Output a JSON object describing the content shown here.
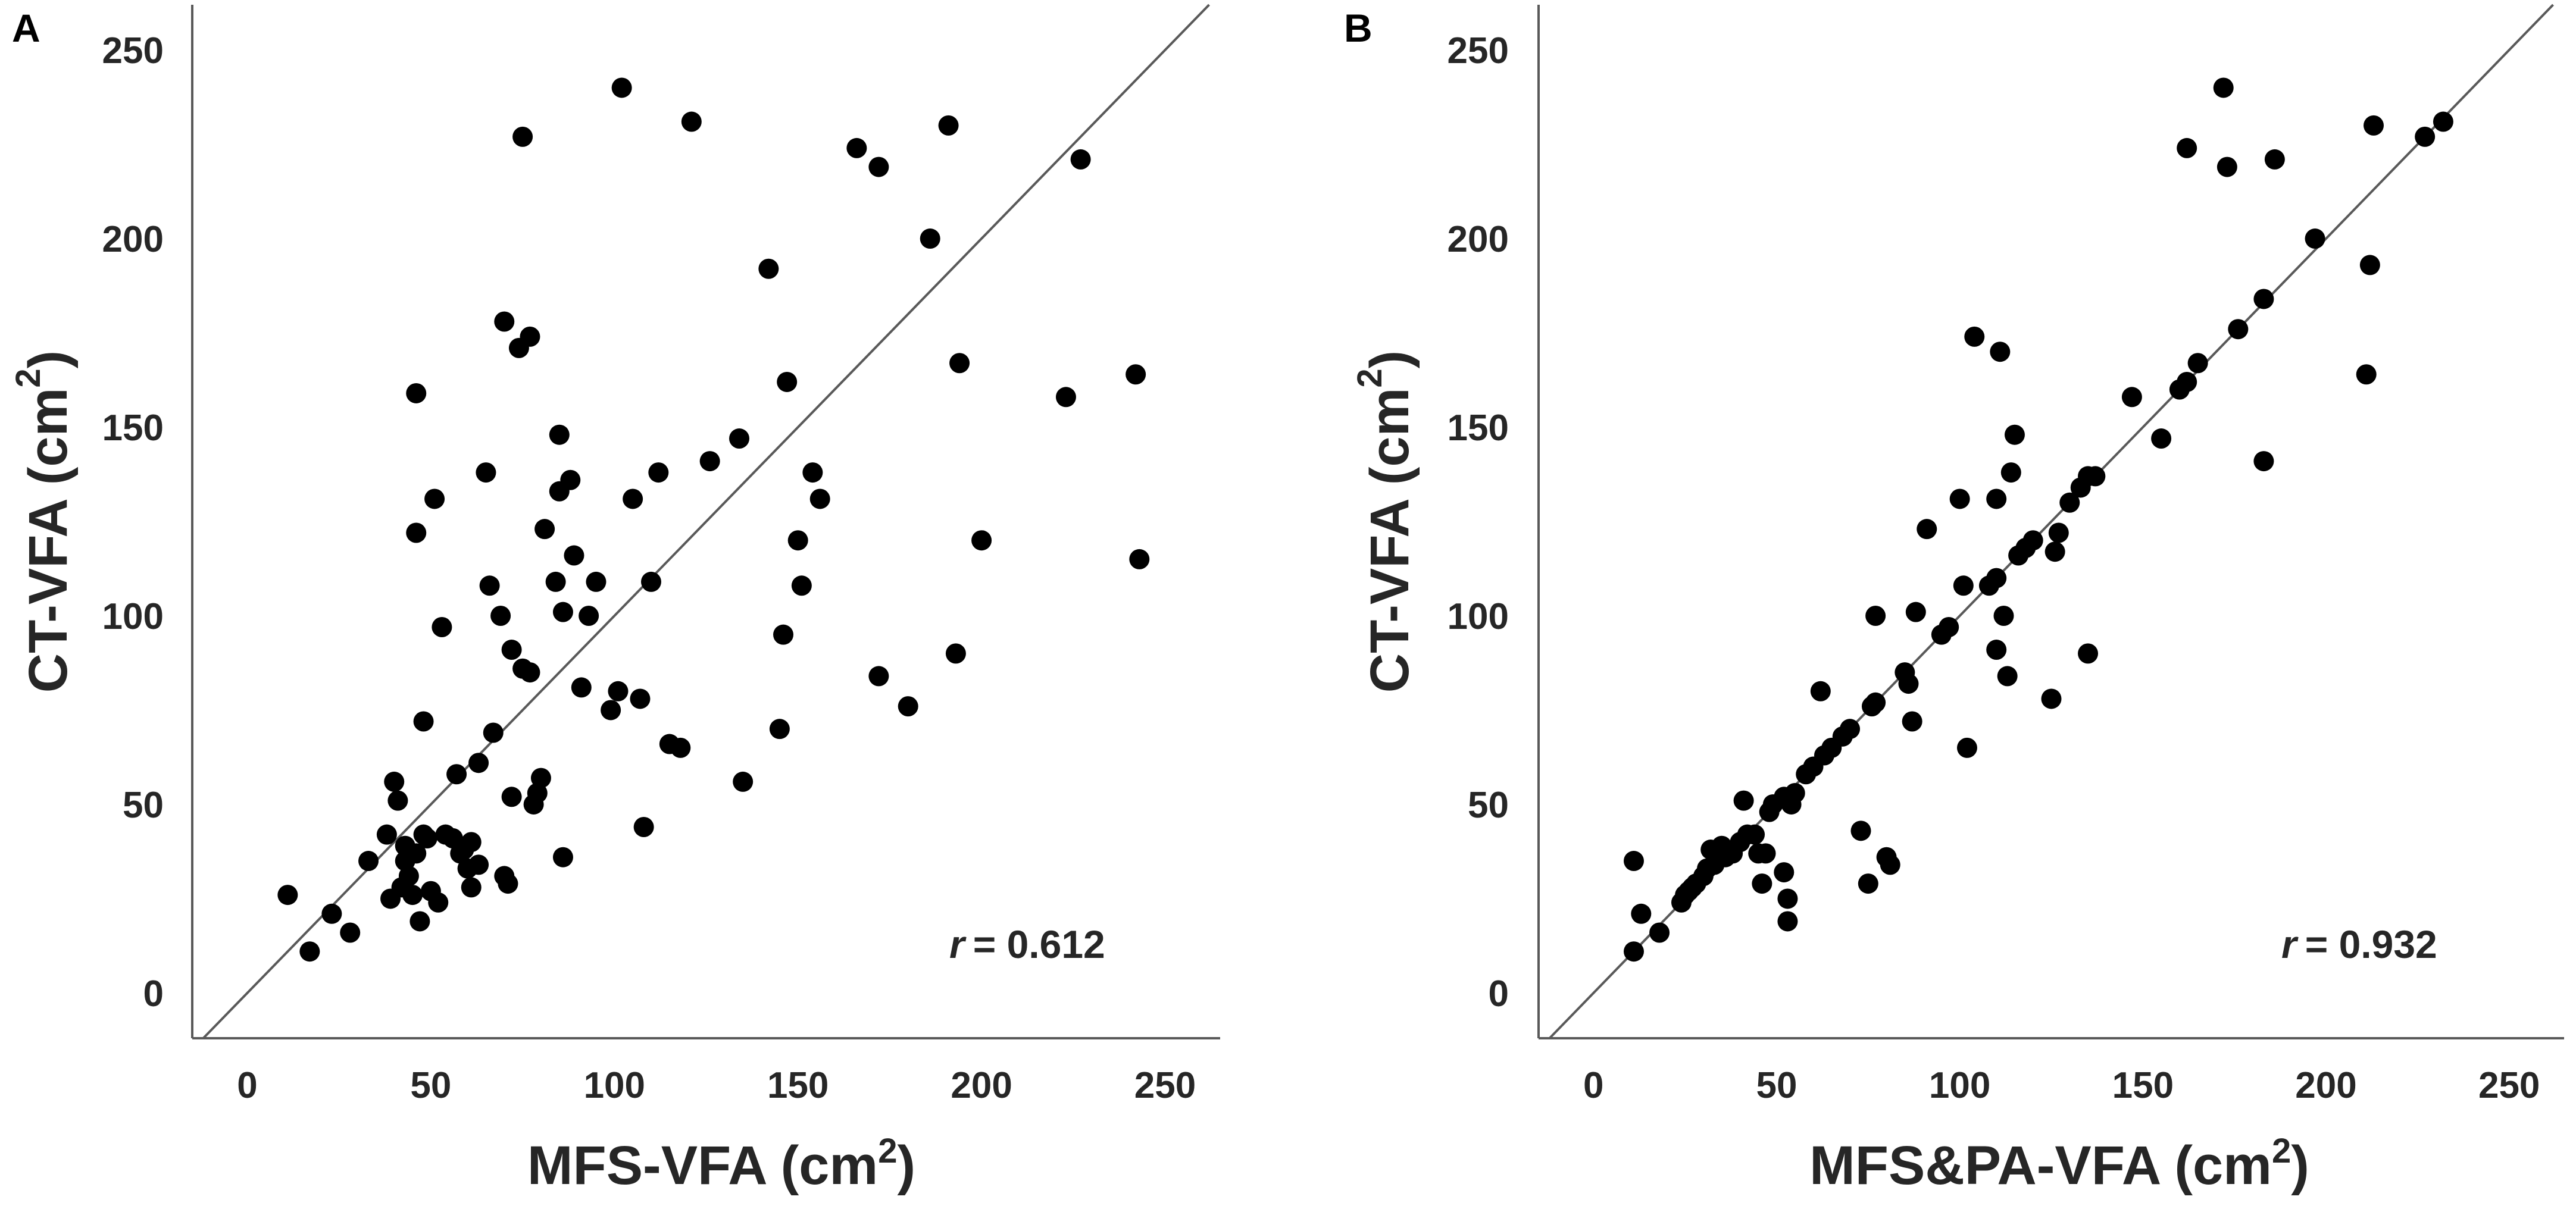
{
  "colors": {
    "point": "#000000",
    "axis": "#595959",
    "identity_line": "#595959",
    "text": "#262626",
    "background": "#ffffff"
  },
  "chart_data": [
    {
      "type": "scatter",
      "panel_label": "A",
      "xlabel": "MFS-VFA",
      "xlabel_unit": "(cm",
      "ylabel": "CT-VFA",
      "ylabel_unit": "(cm",
      "unit_power": "2",
      "unit_close": ")",
      "xlim": [
        -15,
        265
      ],
      "ylim": [
        -12,
        262
      ],
      "xticks": [
        0,
        50,
        100,
        150,
        200,
        250
      ],
      "yticks": [
        0,
        50,
        100,
        150,
        200,
        250
      ],
      "x_tick_labels": [
        "0",
        "50",
        "100",
        "150",
        "200",
        "250"
      ],
      "y_tick_labels": [
        "0",
        "50",
        "100",
        "150",
        "200",
        "250"
      ],
      "identity_line": true,
      "annotation_r": "r",
      "annotation_value": "= 0.612",
      "points": [
        [
          11,
          26
        ],
        [
          17,
          11
        ],
        [
          23,
          21
        ],
        [
          28,
          16
        ],
        [
          33,
          35
        ],
        [
          38,
          42
        ],
        [
          39,
          25
        ],
        [
          40,
          56
        ],
        [
          41,
          51
        ],
        [
          42,
          28
        ],
        [
          43,
          39
        ],
        [
          43,
          35
        ],
        [
          44,
          37
        ],
        [
          44,
          31
        ],
        [
          45,
          26
        ],
        [
          46,
          37
        ],
        [
          46,
          122
        ],
        [
          46,
          159
        ],
        [
          47,
          19
        ],
        [
          48,
          72
        ],
        [
          48,
          42
        ],
        [
          49,
          41
        ],
        [
          50,
          27
        ],
        [
          51,
          131
        ],
        [
          52,
          24
        ],
        [
          53,
          97
        ],
        [
          54,
          42
        ],
        [
          56,
          41
        ],
        [
          57,
          58
        ],
        [
          58,
          37
        ],
        [
          59,
          38
        ],
        [
          60,
          33
        ],
        [
          61,
          40
        ],
        [
          61,
          28
        ],
        [
          63,
          34
        ],
        [
          63,
          61
        ],
        [
          65,
          138
        ],
        [
          66,
          108
        ],
        [
          67,
          69
        ],
        [
          69,
          100
        ],
        [
          70,
          178
        ],
        [
          70,
          31
        ],
        [
          71,
          29
        ],
        [
          72,
          52
        ],
        [
          72,
          91
        ],
        [
          74,
          171
        ],
        [
          75,
          227
        ],
        [
          75,
          86
        ],
        [
          77,
          174
        ],
        [
          77,
          85
        ],
        [
          78,
          50
        ],
        [
          79,
          53
        ],
        [
          80,
          57
        ],
        [
          81,
          123
        ],
        [
          84,
          109
        ],
        [
          85,
          133
        ],
        [
          85,
          148
        ],
        [
          86,
          36
        ],
        [
          86,
          101
        ],
        [
          88,
          136
        ],
        [
          89,
          116
        ],
        [
          91,
          81
        ],
        [
          93,
          100
        ],
        [
          95,
          109
        ],
        [
          99,
          75
        ],
        [
          101,
          80
        ],
        [
          102,
          240
        ],
        [
          105,
          131
        ],
        [
          107,
          78
        ],
        [
          108,
          44
        ],
        [
          110,
          109
        ],
        [
          112,
          138
        ],
        [
          115,
          66
        ],
        [
          118,
          65
        ],
        [
          121,
          231
        ],
        [
          126,
          141
        ],
        [
          134,
          147
        ],
        [
          135,
          56
        ],
        [
          142,
          192
        ],
        [
          145,
          70
        ],
        [
          146,
          95
        ],
        [
          147,
          162
        ],
        [
          150,
          120
        ],
        [
          151,
          108
        ],
        [
          154,
          138
        ],
        [
          156,
          131
        ],
        [
          166,
          224
        ],
        [
          172,
          84
        ],
        [
          172,
          219
        ],
        [
          180,
          76
        ],
        [
          186,
          200
        ],
        [
          191,
          230
        ],
        [
          193,
          90
        ],
        [
          194,
          167
        ],
        [
          200,
          120
        ],
        [
          223,
          158
        ],
        [
          227,
          221
        ],
        [
          242,
          164
        ],
        [
          243,
          115
        ]
      ]
    },
    {
      "type": "scatter",
      "panel_label": "B",
      "xlabel": "MFS&PA-VFA",
      "xlabel_unit": "(cm",
      "ylabel": "CT-VFA",
      "ylabel_unit": "(cm",
      "unit_power": "2",
      "unit_close": ")",
      "xlim": [
        -15,
        265
      ],
      "ylim": [
        -12,
        262
      ],
      "xticks": [
        0,
        50,
        100,
        150,
        200,
        250
      ],
      "yticks": [
        0,
        50,
        100,
        150,
        200,
        250
      ],
      "x_tick_labels": [
        "0",
        "50",
        "100",
        "150",
        "200",
        "250"
      ],
      "y_tick_labels": [
        "0",
        "50",
        "100",
        "150",
        "200",
        "250"
      ],
      "identity_line": true,
      "annotation_r": "r",
      "annotation_value": "= 0.932",
      "points": [
        [
          11,
          11
        ],
        [
          11,
          35
        ],
        [
          13,
          21
        ],
        [
          18,
          16
        ],
        [
          24,
          24
        ],
        [
          25,
          26
        ],
        [
          26,
          27
        ],
        [
          27,
          28
        ],
        [
          28,
          29
        ],
        [
          30,
          31
        ],
        [
          31,
          33
        ],
        [
          32,
          38
        ],
        [
          33,
          34
        ],
        [
          35,
          39
        ],
        [
          36,
          36
        ],
        [
          38,
          37
        ],
        [
          40,
          40
        ],
        [
          41,
          51
        ],
        [
          42,
          42
        ],
        [
          44,
          42
        ],
        [
          45,
          37
        ],
        [
          46,
          29
        ],
        [
          47,
          37
        ],
        [
          48,
          48
        ],
        [
          49,
          50
        ],
        [
          52,
          52
        ],
        [
          52,
          32
        ],
        [
          53,
          25
        ],
        [
          53,
          19
        ],
        [
          54,
          50
        ],
        [
          55,
          53
        ],
        [
          58,
          58
        ],
        [
          60,
          60
        ],
        [
          62,
          80
        ],
        [
          63,
          63
        ],
        [
          65,
          65
        ],
        [
          68,
          68
        ],
        [
          70,
          70
        ],
        [
          73,
          43
        ],
        [
          75,
          29
        ],
        [
          76,
          76
        ],
        [
          77,
          77
        ],
        [
          77,
          100
        ],
        [
          80,
          36
        ],
        [
          81,
          34
        ],
        [
          85,
          85
        ],
        [
          86,
          82
        ],
        [
          87,
          72
        ],
        [
          88,
          101
        ],
        [
          91,
          123
        ],
        [
          95,
          95
        ],
        [
          97,
          97
        ],
        [
          100,
          131
        ],
        [
          101,
          108
        ],
        [
          102,
          65
        ],
        [
          104,
          174
        ],
        [
          108,
          108
        ],
        [
          110,
          110
        ],
        [
          110,
          131
        ],
        [
          110,
          91
        ],
        [
          111,
          170
        ],
        [
          112,
          100
        ],
        [
          113,
          84
        ],
        [
          114,
          138
        ],
        [
          115,
          148
        ],
        [
          116,
          116
        ],
        [
          118,
          118
        ],
        [
          120,
          120
        ],
        [
          125,
          78
        ],
        [
          126,
          117
        ],
        [
          127,
          122
        ],
        [
          130,
          130
        ],
        [
          133,
          134
        ],
        [
          135,
          137
        ],
        [
          135,
          90
        ],
        [
          137,
          137
        ],
        [
          147,
          158
        ],
        [
          155,
          147
        ],
        [
          160,
          160
        ],
        [
          162,
          224
        ],
        [
          162,
          162
        ],
        [
          165,
          167
        ],
        [
          172,
          240
        ],
        [
          173,
          219
        ],
        [
          176,
          176
        ],
        [
          183,
          184
        ],
        [
          183,
          141
        ],
        [
          186,
          221
        ],
        [
          197,
          200
        ],
        [
          211,
          164
        ],
        [
          212,
          193
        ],
        [
          213,
          230
        ],
        [
          227,
          227
        ],
        [
          232,
          231
        ]
      ]
    }
  ]
}
